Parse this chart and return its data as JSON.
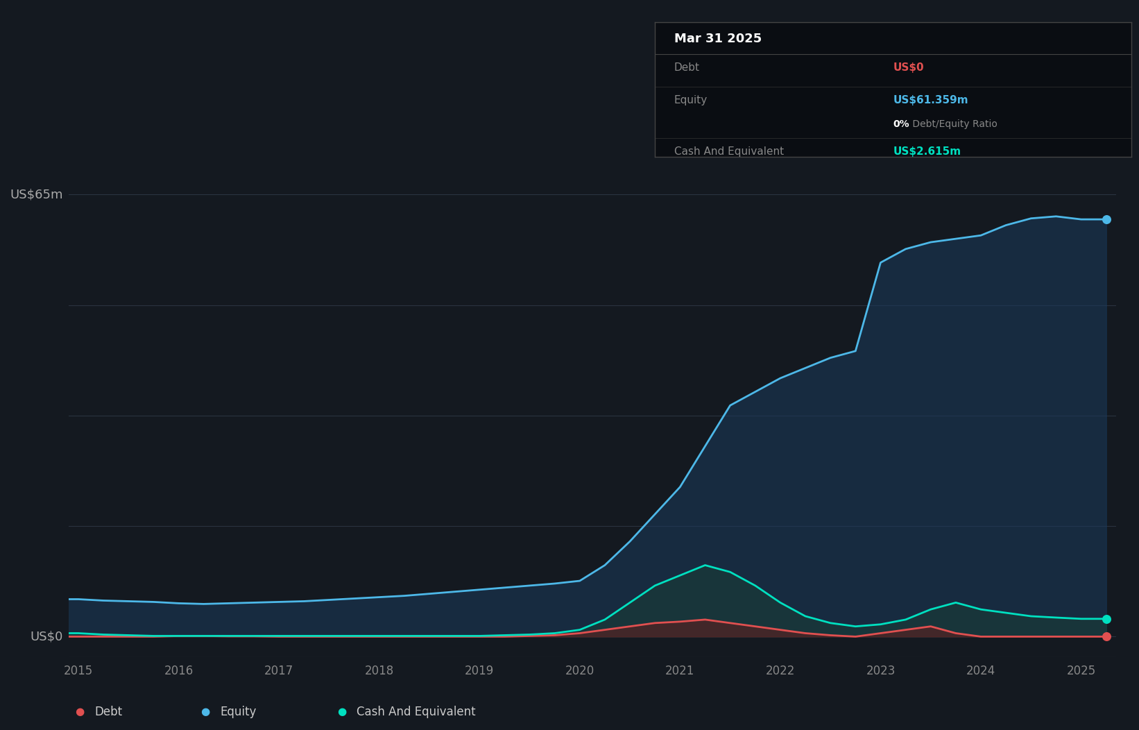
{
  "background_color": "#141920",
  "plot_bg_color": "#141920",
  "grid_color": "#2a3340",
  "tooltip_title": "Mar 31 2025",
  "tooltip_debt_label": "Debt",
  "tooltip_debt_value": "US$0",
  "tooltip_equity_label": "Equity",
  "tooltip_equity_value": "US$61.359m",
  "tooltip_ratio_bold": "0%",
  "tooltip_ratio_gray": " Debt/Equity Ratio",
  "tooltip_cash_label": "Cash And Equivalent",
  "tooltip_cash_value": "US$2.615m",
  "debt_color": "#e05050",
  "equity_color": "#4db8e8",
  "cash_color": "#00e0c0",
  "equity_fill_color": "#1a3a5c",
  "debt_fill_color": "#5a2020",
  "cash_fill_color": "#1a4035",
  "ylim_top": 70,
  "ylim_bottom": -3,
  "ylabel_top": "US$65m",
  "ylabel_zero": "US$0",
  "years": [
    2014.75,
    2015.0,
    2015.25,
    2015.5,
    2015.75,
    2016.0,
    2016.25,
    2016.5,
    2016.75,
    2017.0,
    2017.25,
    2017.5,
    2017.75,
    2018.0,
    2018.25,
    2018.5,
    2018.75,
    2019.0,
    2019.25,
    2019.5,
    2019.75,
    2020.0,
    2020.25,
    2020.5,
    2020.75,
    2021.0,
    2021.25,
    2021.5,
    2021.75,
    2022.0,
    2022.25,
    2022.5,
    2022.75,
    2023.0,
    2023.25,
    2023.5,
    2023.75,
    2024.0,
    2024.25,
    2024.5,
    2024.75,
    2025.0,
    2025.25
  ],
  "equity": [
    5.5,
    5.5,
    5.3,
    5.2,
    5.1,
    4.9,
    4.8,
    4.9,
    5.0,
    5.1,
    5.2,
    5.4,
    5.6,
    5.8,
    6.0,
    6.3,
    6.6,
    6.9,
    7.2,
    7.5,
    7.8,
    8.2,
    10.5,
    14.0,
    18.0,
    22.0,
    28.0,
    34.0,
    36.0,
    38.0,
    39.5,
    41.0,
    42.0,
    55.0,
    57.0,
    58.0,
    58.5,
    59.0,
    60.5,
    61.5,
    61.8,
    61.36,
    61.36
  ],
  "debt": [
    0.0,
    0.0,
    0.0,
    0.0,
    0.0,
    0.1,
    0.1,
    0.05,
    0.05,
    0.0,
    0.0,
    0.0,
    0.0,
    0.0,
    0.0,
    0.0,
    0.0,
    0.0,
    0.0,
    0.1,
    0.2,
    0.5,
    1.0,
    1.5,
    2.0,
    2.2,
    2.5,
    2.0,
    1.5,
    1.0,
    0.5,
    0.2,
    0.0,
    0.5,
    1.0,
    1.5,
    0.5,
    0.0,
    0.0,
    0.0,
    0.0,
    0.0,
    0.0
  ],
  "cash": [
    0.5,
    0.5,
    0.3,
    0.2,
    0.1,
    0.1,
    0.1,
    0.1,
    0.1,
    0.1,
    0.1,
    0.1,
    0.1,
    0.1,
    0.1,
    0.1,
    0.1,
    0.1,
    0.2,
    0.3,
    0.5,
    1.0,
    2.5,
    5.0,
    7.5,
    9.0,
    10.5,
    9.5,
    7.5,
    5.0,
    3.0,
    2.0,
    1.5,
    1.8,
    2.5,
    4.0,
    5.0,
    4.0,
    3.5,
    3.0,
    2.8,
    2.615,
    2.615
  ],
  "x_ticks": [
    2015,
    2016,
    2017,
    2018,
    2019,
    2020,
    2021,
    2022,
    2023,
    2024,
    2025
  ],
  "legend_items": [
    {
      "label": "Debt",
      "color": "#e05050"
    },
    {
      "label": "Equity",
      "color": "#4db8e8"
    },
    {
      "label": "Cash And Equivalent",
      "color": "#00e0c0"
    }
  ],
  "line_width": 2.0,
  "dot_size": 70,
  "grid_y_values": [
    0,
    16.25,
    32.5,
    48.75,
    65
  ]
}
